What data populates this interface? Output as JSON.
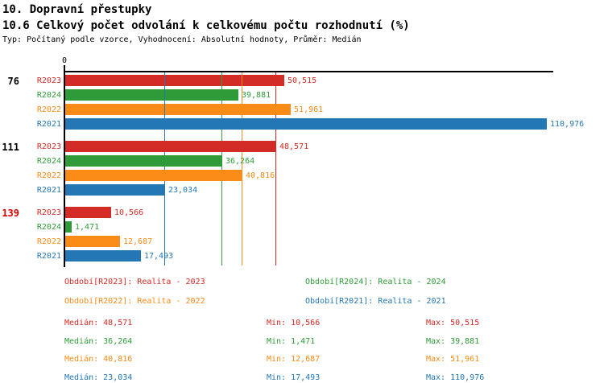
{
  "header": {
    "title": "10. Dopravní přestupky",
    "subtitle": "10.6 Celkový počet odvolání k celkovému počtu rozhodnutí (%)",
    "meta": "Typ: Počítaný podle vzorce, Vyhodnocení: Absolutní hodnoty, Průměr: Medián"
  },
  "colors": {
    "R2023": "#d32b25",
    "R2024": "#2e9b38",
    "R2022": "#f98b16",
    "R2021": "#2377b4",
    "axis": "#000000",
    "group_label_default": "#000000",
    "group_label_highlight": "#e00000"
  },
  "chart_data": {
    "type": "bar",
    "orientation": "horizontal",
    "title": "10.6 Celkový počet odvolání k celkovému počtu rozhodnutí (%)",
    "xlabel": "",
    "ylabel": "",
    "axis": {
      "zero_label": "0",
      "xlim": [
        0,
        112660
      ],
      "grid": false
    },
    "legend_position": "below",
    "series_order": [
      "R2023",
      "R2024",
      "R2022",
      "R2021"
    ],
    "groups": [
      {
        "label": "76",
        "label_color": "#000000",
        "bars": [
          {
            "series": "R2023",
            "value": 50515,
            "label": "50,515"
          },
          {
            "series": "R2024",
            "value": 39881,
            "label": "39,881"
          },
          {
            "series": "R2022",
            "value": 51961,
            "label": "51,961"
          },
          {
            "series": "R2021",
            "value": 110976,
            "label": "110,976"
          }
        ]
      },
      {
        "label": "111",
        "label_color": "#000000",
        "bars": [
          {
            "series": "R2023",
            "value": 48571,
            "label": "48,571"
          },
          {
            "series": "R2024",
            "value": 36264,
            "label": "36,264"
          },
          {
            "series": "R2022",
            "value": 40816,
            "label": "40,816"
          },
          {
            "series": "R2021",
            "value": 23034,
            "label": "23,034"
          }
        ]
      },
      {
        "label": "139",
        "label_color": "#e00000",
        "bars": [
          {
            "series": "R2023",
            "value": 10566,
            "label": "10,566"
          },
          {
            "series": "R2024",
            "value": 1471,
            "label": "1,471"
          },
          {
            "series": "R2022",
            "value": 12687,
            "label": "12,687"
          },
          {
            "series": "R2021",
            "value": 17493,
            "label": "17,493"
          }
        ]
      }
    ],
    "median_lines": [
      {
        "series": "R2023",
        "value": 48571
      },
      {
        "series": "R2024",
        "value": 36264
      },
      {
        "series": "R2022",
        "value": 40816
      },
      {
        "series": "R2021",
        "value": 23034
      }
    ]
  },
  "legend": {
    "items": [
      {
        "series": "R2023",
        "label": "Období[R2023]: Realita - 2023"
      },
      {
        "series": "R2024",
        "label": "Období[R2024]: Realita - 2024"
      },
      {
        "series": "R2022",
        "label": "Období[R2022]: Realita - 2022"
      },
      {
        "series": "R2021",
        "label": "Období[R2021]: Realita - 2021"
      }
    ]
  },
  "stats": {
    "rows": [
      {
        "series": "R2023",
        "median_text": "Medián: 48,571",
        "min_text": "Min: 10,566",
        "max_text": "Max: 50,515"
      },
      {
        "series": "R2024",
        "median_text": "Medián: 36,264",
        "min_text": "Min: 1,471",
        "max_text": "Max: 39,881"
      },
      {
        "series": "R2022",
        "median_text": "Medián: 40,816",
        "min_text": "Min: 12,687",
        "max_text": "Max: 51,961"
      },
      {
        "series": "R2021",
        "median_text": "Medián: 23,034",
        "min_text": "Min: 17,493",
        "max_text": "Max: 110,976"
      }
    ]
  }
}
